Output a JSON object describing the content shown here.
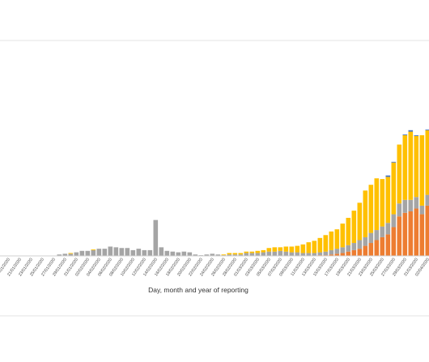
{
  "chart_data": {
    "type": "bar",
    "stacked": true,
    "grid": false,
    "legend": "none",
    "xlabel": "Day, month and year of reporting",
    "ylabel": "",
    "ylim": [
      0,
      230
    ],
    "categories": [
      "17/01/2020",
      "18/01/2020",
      "19/01/2020",
      "20/01/2020",
      "21/01/2020",
      "22/01/2020",
      "23/01/2020",
      "24/01/2020",
      "25/01/2020",
      "26/01/2020",
      "27/01/2020",
      "28/01/2020",
      "29/01/2020",
      "30/01/2020",
      "31/01/2020",
      "01/02/2020",
      "02/02/2020",
      "03/02/2020",
      "04/02/2020",
      "05/02/2020",
      "06/02/2020",
      "07/02/2020",
      "08/02/2020",
      "09/02/2020",
      "10/02/2020",
      "11/02/2020",
      "12/02/2020",
      "13/02/2020",
      "14/02/2020",
      "15/02/2020",
      "16/02/2020",
      "17/02/2020",
      "18/02/2020",
      "19/02/2020",
      "20/02/2020",
      "21/02/2020",
      "22/02/2020",
      "23/02/2020",
      "24/02/2020",
      "25/02/2020",
      "26/02/2020",
      "27/02/2020",
      "28/02/2020",
      "29/02/2020",
      "01/03/2020",
      "02/03/2020",
      "03/03/2020",
      "04/03/2020",
      "05/03/2020",
      "06/03/2020",
      "07/03/2020",
      "08/03/2020",
      "09/03/2020",
      "10/03/2020",
      "11/03/2020",
      "12/03/2020",
      "13/03/2020",
      "14/03/2020",
      "15/03/2020",
      "16/03/2020",
      "17/03/2020",
      "18/03/2020",
      "19/03/2020",
      "20/03/2020",
      "21/03/2020",
      "22/03/2020",
      "23/03/2020",
      "24/03/2020",
      "25/03/2020",
      "26/03/2020",
      "27/03/2020",
      "28/03/2020",
      "29/03/2020",
      "30/03/2020",
      "31/03/2020",
      "01/04/2020",
      "02/04/2020",
      "03/04/2020"
    ],
    "series": [
      {
        "color": "#ed7d31",
        "values": [
          0,
          0,
          0,
          0,
          0,
          0,
          0,
          0,
          0,
          0,
          0,
          0,
          0,
          0,
          0,
          0,
          0,
          0,
          0,
          0,
          0,
          0,
          0,
          0,
          0,
          0,
          0,
          0,
          0,
          0,
          0,
          0,
          0,
          0,
          0,
          0,
          0,
          0,
          0,
          0,
          0,
          0,
          0,
          0,
          0,
          0,
          0,
          0,
          0,
          0,
          0,
          0,
          0,
          0,
          0,
          0,
          0,
          1,
          1,
          2,
          3,
          4,
          6,
          8,
          10,
          14,
          18,
          22,
          26,
          30,
          40,
          55,
          60,
          62,
          66,
          58,
          70,
          78
        ]
      },
      {
        "color": "#a5a5a5",
        "values": [
          0,
          0,
          0,
          0,
          0,
          0,
          0,
          0,
          0,
          0,
          0,
          2,
          3,
          3,
          5,
          7,
          7,
          8,
          10,
          10,
          13,
          12,
          11,
          11,
          8,
          10,
          8,
          8,
          50,
          12,
          7,
          6,
          5,
          6,
          5,
          2,
          1,
          2,
          3,
          2,
          1,
          2,
          2,
          2,
          4,
          4,
          4,
          5,
          6,
          6,
          7,
          6,
          5,
          5,
          4,
          4,
          4,
          4,
          5,
          6,
          7,
          8,
          9,
          10,
          12,
          12,
          14,
          14,
          15,
          16,
          18,
          18,
          18,
          16,
          16,
          12,
          15,
          14
        ]
      },
      {
        "color": "#ffc000",
        "values": [
          0,
          0,
          0,
          0,
          0,
          0,
          0,
          0,
          0,
          0,
          0,
          0,
          0,
          1,
          0,
          0,
          0,
          1,
          0,
          0,
          0,
          0,
          0,
          0,
          0,
          0,
          0,
          0,
          0,
          0,
          0,
          0,
          0,
          0,
          0,
          0,
          0,
          0,
          0,
          0,
          1,
          2,
          2,
          2,
          2,
          2,
          3,
          3,
          5,
          6,
          5,
          7,
          8,
          9,
          12,
          15,
          17,
          20,
          23,
          26,
          27,
          33,
          38,
          45,
          52,
          65,
          67,
          72,
          66,
          64,
          72,
          82,
          90,
          95,
          85,
          98,
          90,
          98
        ]
      },
      {
        "color": "#4472c4",
        "values": [
          0,
          0,
          0,
          0,
          0,
          0,
          0,
          0,
          0,
          0,
          0,
          0,
          0,
          0,
          0,
          0,
          0,
          0,
          0,
          0,
          0,
          0,
          0,
          0,
          0,
          0,
          0,
          0,
          0,
          0,
          0,
          0,
          0,
          0,
          0,
          0,
          0,
          0,
          0,
          0,
          0,
          0,
          0,
          0,
          0,
          0,
          0,
          0,
          0,
          0,
          0,
          0,
          0,
          0,
          0,
          0,
          0,
          0,
          0,
          0,
          0,
          0,
          0,
          0,
          0,
          0,
          0,
          0,
          0,
          2,
          1,
          0,
          1,
          2,
          1,
          0,
          1,
          2
        ]
      }
    ]
  }
}
